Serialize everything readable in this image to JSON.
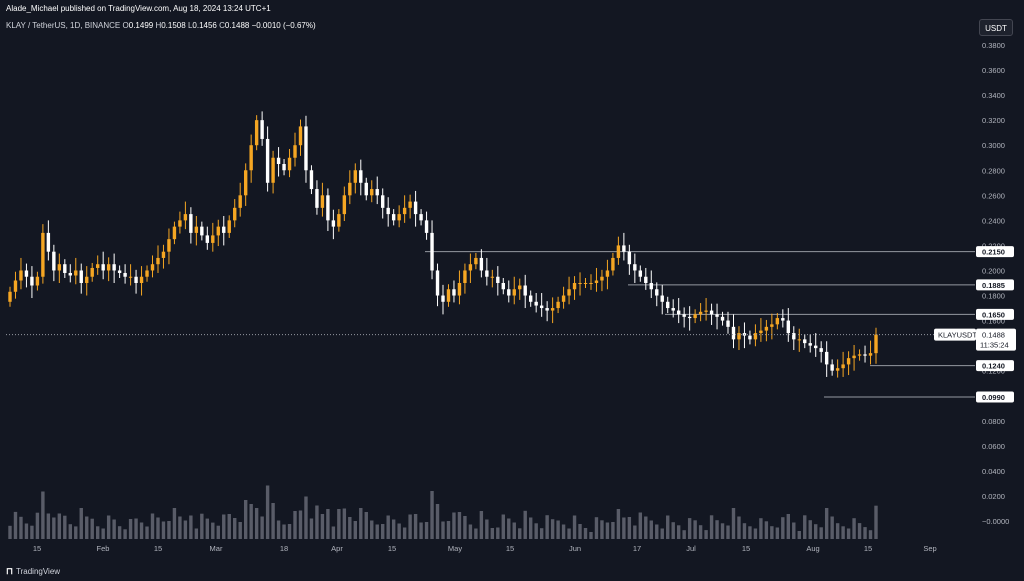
{
  "header": {
    "published": "Alade_Michael published on TradingView.com, Aug 18, 2024 13:24 UTC+1",
    "symbol": "KLAY / TetherUS, 1D, BINANCE",
    "o_label": "O",
    "o_value": "0.1499",
    "h_label": "H",
    "h_value": "0.1508",
    "l_label": "L",
    "l_value": "0.1456",
    "c_label": "C",
    "c_value": "0.1488",
    "change": "−0.0010 (−0.67%)"
  },
  "unit_button": "USDT",
  "footer": {
    "brand": "TradingView"
  },
  "colors": {
    "up": "#f5a623",
    "down": "#ffffff",
    "bg": "#131722",
    "grid_text": "#b2b5be",
    "volume": "#787b86"
  },
  "chart_data": {
    "type": "candlestick",
    "y_ticks": [
      "0.3800",
      "0.3600",
      "0.3400",
      "0.3200",
      "0.3000",
      "0.2800",
      "0.2600",
      "0.2400",
      "0.2200",
      "0.2000",
      "0.1800",
      "0.1600",
      "0.1400",
      "0.1200",
      "0.1000",
      "0.0800",
      "0.0600",
      "0.0400",
      "0.0200",
      "−0.0000"
    ],
    "ylim": [
      0,
      0.38
    ],
    "x_ticks": [
      "15",
      "Feb",
      "15",
      "Mar",
      "18",
      "Apr",
      "15",
      "May",
      "15",
      "Jun",
      "17",
      "Jul",
      "15",
      "Aug",
      "15",
      "Sep"
    ],
    "horizontal_levels": [
      {
        "label": "0.2150",
        "value": 0.215
      },
      {
        "label": "0.1885",
        "value": 0.1885
      },
      {
        "label": "0.1650",
        "value": 0.165
      },
      {
        "label": "0.1240",
        "value": 0.124
      },
      {
        "label": "0.0990",
        "value": 0.099
      }
    ],
    "last_price": {
      "symbol": "KLAYUSDT",
      "value": "0.1488",
      "countdown": "11:35:24"
    },
    "closes": [
      0.183,
      0.192,
      0.2,
      0.195,
      0.188,
      0.195,
      0.23,
      0.215,
      0.2,
      0.205,
      0.198,
      0.196,
      0.2,
      0.19,
      0.195,
      0.202,
      0.205,
      0.2,
      0.205,
      0.2,
      0.198,
      0.195,
      0.195,
      0.19,
      0.195,
      0.2,
      0.205,
      0.21,
      0.215,
      0.225,
      0.235,
      0.24,
      0.245,
      0.23,
      0.235,
      0.228,
      0.222,
      0.228,
      0.235,
      0.23,
      0.24,
      0.25,
      0.26,
      0.28,
      0.3,
      0.32,
      0.305,
      0.27,
      0.29,
      0.285,
      0.28,
      0.29,
      0.3,
      0.315,
      0.28,
      0.265,
      0.25,
      0.26,
      0.24,
      0.235,
      0.245,
      0.26,
      0.27,
      0.28,
      0.27,
      0.26,
      0.265,
      0.26,
      0.25,
      0.245,
      0.24,
      0.245,
      0.25,
      0.255,
      0.245,
      0.24,
      0.23,
      0.2,
      0.18,
      0.175,
      0.185,
      0.18,
      0.19,
      0.2,
      0.205,
      0.21,
      0.2,
      0.195,
      0.195,
      0.19,
      0.185,
      0.18,
      0.185,
      0.188,
      0.18,
      0.175,
      0.172,
      0.17,
      0.168,
      0.17,
      0.175,
      0.18,
      0.185,
      0.19,
      0.19,
      0.19,
      0.19,
      0.192,
      0.195,
      0.2,
      0.21,
      0.22,
      0.215,
      0.205,
      0.2,
      0.195,
      0.19,
      0.185,
      0.18,
      0.175,
      0.17,
      0.168,
      0.165,
      0.163,
      0.162,
      0.165,
      0.167,
      0.168,
      0.165,
      0.163,
      0.16,
      0.155,
      0.145,
      0.15,
      0.148,
      0.145,
      0.15,
      0.152,
      0.155,
      0.157,
      0.162,
      0.16,
      0.15,
      0.145,
      0.145,
      0.142,
      0.14,
      0.138,
      0.135,
      0.125,
      0.12,
      0.122,
      0.125,
      0.13,
      0.132,
      0.133,
      0.132,
      0.134,
      0.1488
    ]
  }
}
